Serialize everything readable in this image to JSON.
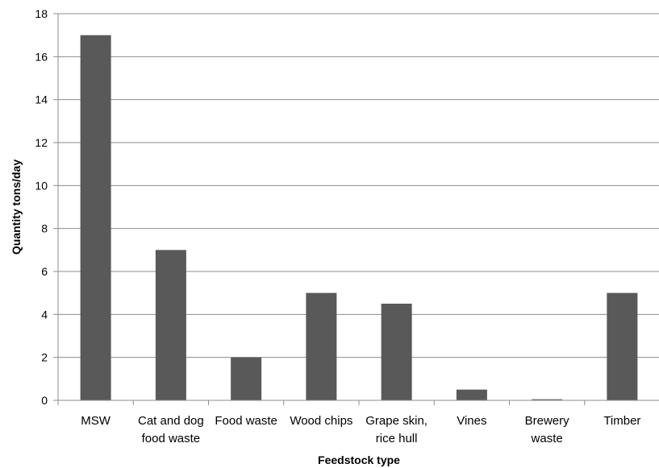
{
  "chart_data": {
    "type": "bar",
    "categories": [
      [
        "MSW"
      ],
      [
        "Cat and dog",
        "food waste"
      ],
      [
        "Food waste"
      ],
      [
        "Wood chips"
      ],
      [
        "Grape skin,",
        "rice  hull"
      ],
      [
        "Vines"
      ],
      [
        "Brewery",
        "waste"
      ],
      [
        "Timber"
      ]
    ],
    "values": [
      17,
      7,
      2,
      5,
      4.5,
      0.5,
      0.05,
      5
    ],
    "xlabel": "Feedstock type",
    "ylabel": "Quantity tons/day",
    "ylim": [
      0,
      18
    ],
    "yticks": [
      0,
      2,
      4,
      6,
      8,
      10,
      12,
      14,
      16,
      18
    ],
    "grid": true,
    "legend": "none",
    "colors": {
      "bar": "#595959",
      "grid": "#8c8c8c",
      "axis": "#8c8c8c"
    }
  }
}
